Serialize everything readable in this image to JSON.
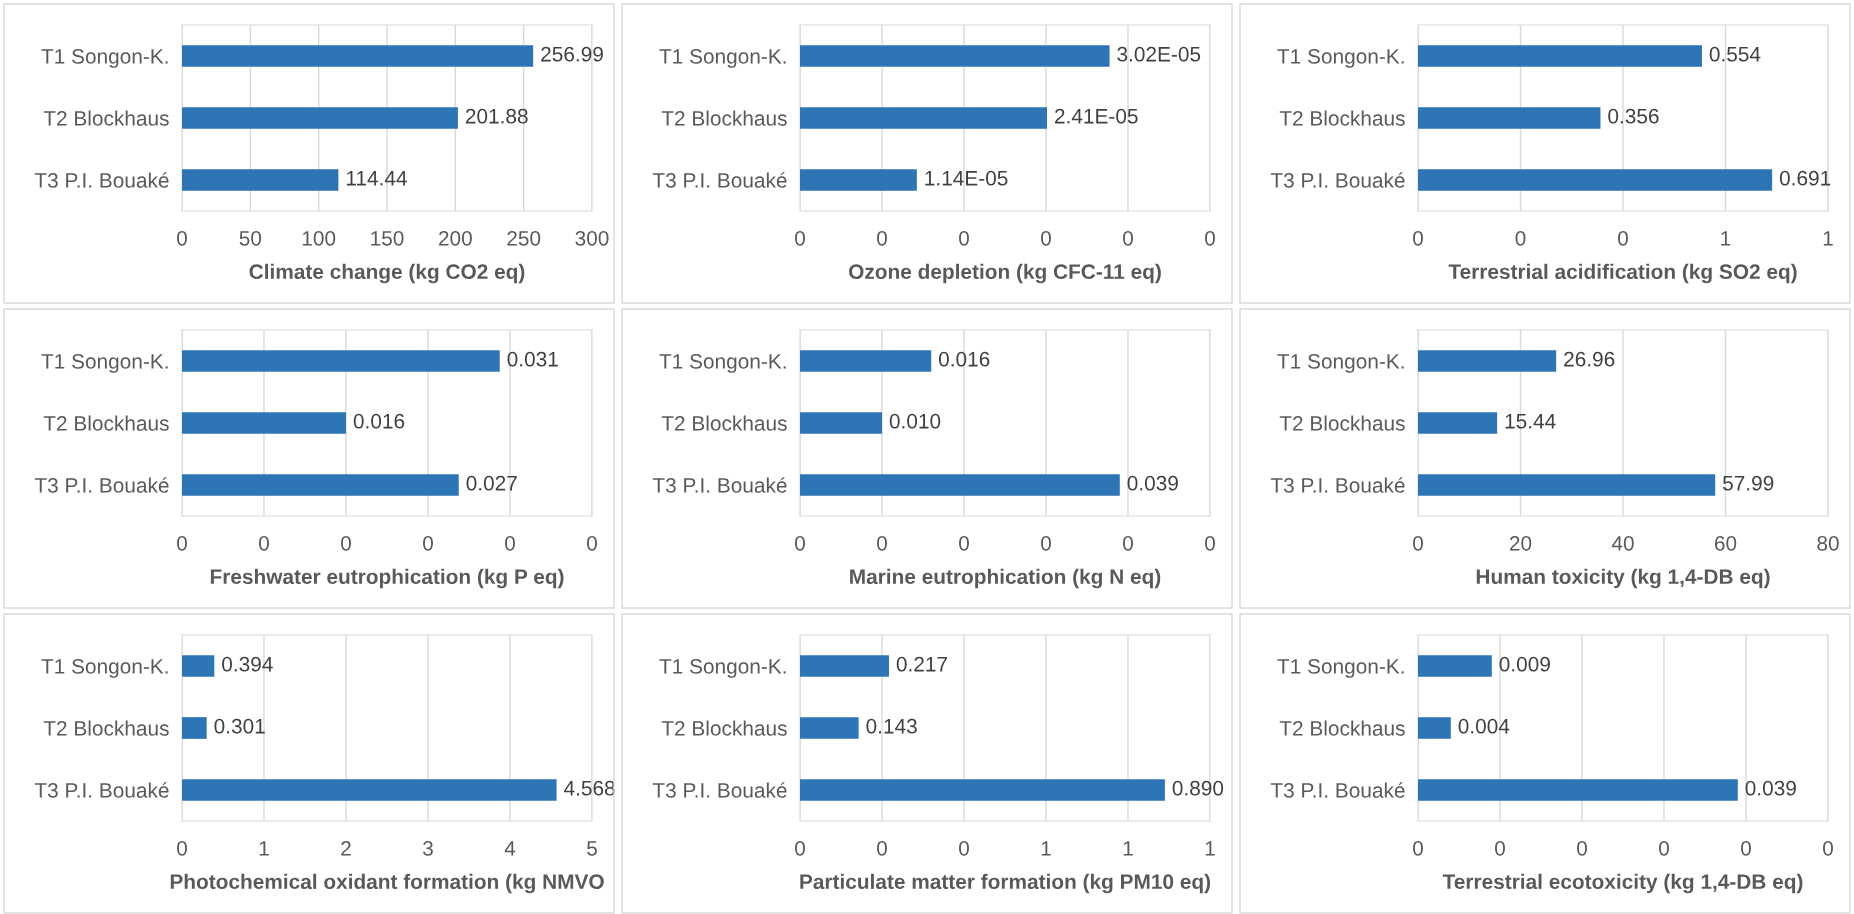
{
  "chart_data": [
    {
      "type": "bar",
      "orientation": "horizontal",
      "xlabel": "Climate change (kg CO2 eq)",
      "categories": [
        "T1 Songon-K.",
        "T2 Blockhaus",
        "T3 P.I. Bouaké"
      ],
      "values": [
        256.99,
        201.88,
        114.44
      ],
      "value_labels": [
        "256.99",
        "201.88",
        "114.44"
      ],
      "color": "#2e75b6",
      "xlim": [
        0,
        300
      ],
      "xticks": [
        0,
        50,
        100,
        150,
        200,
        250,
        300
      ],
      "grid": "x"
    },
    {
      "type": "bar",
      "orientation": "horizontal",
      "xlabel": "Ozone depletion (kg CFC-11 eq)",
      "categories": [
        "T1 Songon-K.",
        "T2 Blockhaus",
        "T3 P.I. Bouaké"
      ],
      "values": [
        3.02e-05,
        2.41e-05,
        1.14e-05
      ],
      "value_labels": [
        "3.02E-05",
        "2.41E-05",
        "1.14E-05"
      ],
      "color": "#2e75b6",
      "xlim": [
        0,
        4e-05
      ],
      "xticks": [
        {
          "value": 0,
          "label": "0"
        },
        {
          "value": 8e-06,
          "label": "0"
        },
        {
          "value": 1.6e-05,
          "label": "0"
        },
        {
          "value": 2.4e-05,
          "label": "0"
        },
        {
          "value": 3.2e-05,
          "label": "0"
        },
        {
          "value": 4e-05,
          "label": "0"
        }
      ],
      "grid": "x"
    },
    {
      "type": "bar",
      "orientation": "horizontal",
      "xlabel": "Terrestrial acidification (kg SO2 eq)",
      "categories": [
        "T1 Songon-K.",
        "T2 Blockhaus",
        "T3 P.I. Bouaké"
      ],
      "values": [
        0.554,
        0.356,
        0.691
      ],
      "value_labels": [
        "0.554",
        "0.356",
        "0.691"
      ],
      "color": "#2e75b6",
      "xlim": [
        0,
        0.8
      ],
      "xticks": [
        {
          "value": 0,
          "label": "0"
        },
        {
          "value": 0.2,
          "label": "0"
        },
        {
          "value": 0.4,
          "label": "0"
        },
        {
          "value": 0.6,
          "label": "1"
        },
        {
          "value": 0.8,
          "label": "1"
        }
      ],
      "grid": "x"
    },
    {
      "type": "bar",
      "orientation": "horizontal",
      "xlabel": "Freshwater eutrophication (kg P eq)",
      "categories": [
        "T1 Songon-K.",
        "T2 Blockhaus",
        "T3 P.I. Bouaké"
      ],
      "values": [
        0.031,
        0.016,
        0.027
      ],
      "value_labels": [
        "0.031",
        "0.016",
        "0.027"
      ],
      "color": "#2e75b6",
      "xlim": [
        0,
        0.04
      ],
      "xticks": [
        {
          "value": 0,
          "label": "0"
        },
        {
          "value": 0.008,
          "label": "0"
        },
        {
          "value": 0.016,
          "label": "0"
        },
        {
          "value": 0.024,
          "label": "0"
        },
        {
          "value": 0.032,
          "label": "0"
        },
        {
          "value": 0.04,
          "label": "0"
        }
      ],
      "grid": "x"
    },
    {
      "type": "bar",
      "orientation": "horizontal",
      "xlabel": "Marine eutrophication (kg N eq)",
      "categories": [
        "T1 Songon-K.",
        "T2 Blockhaus",
        "T3 P.I. Bouaké"
      ],
      "values": [
        0.016,
        0.01,
        0.039
      ],
      "value_labels": [
        "0.016",
        "0.010",
        "0.039"
      ],
      "color": "#2e75b6",
      "xlim": [
        0,
        0.05
      ],
      "xticks": [
        {
          "value": 0,
          "label": "0"
        },
        {
          "value": 0.01,
          "label": "0"
        },
        {
          "value": 0.02,
          "label": "0"
        },
        {
          "value": 0.03,
          "label": "0"
        },
        {
          "value": 0.04,
          "label": "0"
        },
        {
          "value": 0.05,
          "label": "0"
        }
      ],
      "grid": "x"
    },
    {
      "type": "bar",
      "orientation": "horizontal",
      "xlabel": "Human toxicity (kg 1,4-DB eq)",
      "categories": [
        "T1 Songon-K.",
        "T2 Blockhaus",
        "T3 P.I. Bouaké"
      ],
      "values": [
        26.96,
        15.44,
        57.99
      ],
      "value_labels": [
        "26.96",
        "15.44",
        "57.99"
      ],
      "color": "#2e75b6",
      "xlim": [
        0,
        80
      ],
      "xticks": [
        0,
        20,
        40,
        60,
        80
      ],
      "grid": "x"
    },
    {
      "type": "bar",
      "orientation": "horizontal",
      "xlabel": "Photochemical oxidant formation (kg NMVO",
      "categories": [
        "T1 Songon-K.",
        "T2 Blockhaus",
        "T3 P.I. Bouaké"
      ],
      "values": [
        0.394,
        0.301,
        4.568
      ],
      "value_labels": [
        "0.394",
        "0.301",
        "4.568"
      ],
      "color": "#2e75b6",
      "xlim": [
        0,
        5
      ],
      "xticks": [
        0,
        1,
        2,
        3,
        4,
        5
      ],
      "grid": "x"
    },
    {
      "type": "bar",
      "orientation": "horizontal",
      "xlabel": "Particulate matter formation (kg PM10 eq)",
      "categories": [
        "T1 Songon-K.",
        "T2 Blockhaus",
        "T3 P.I. Bouaké"
      ],
      "values": [
        0.217,
        0.143,
        0.89
      ],
      "value_labels": [
        "0.217",
        "0.143",
        "0.890"
      ],
      "color": "#2e75b6",
      "xlim": [
        0,
        1
      ],
      "xticks": [
        {
          "value": 0,
          "label": "0"
        },
        {
          "value": 0.2,
          "label": "0"
        },
        {
          "value": 0.4,
          "label": "0"
        },
        {
          "value": 0.6,
          "label": "1"
        },
        {
          "value": 0.8,
          "label": "1"
        },
        {
          "value": 1,
          "label": "1"
        }
      ],
      "grid": "x"
    },
    {
      "type": "bar",
      "orientation": "horizontal",
      "xlabel": "Terrestrial ecotoxicity (kg 1,4-DB eq)",
      "categories": [
        "T1 Songon-K.",
        "T2 Blockhaus",
        "T3 P.I. Bouaké"
      ],
      "values": [
        0.009,
        0.004,
        0.039
      ],
      "value_labels": [
        "0.009",
        "0.004",
        "0.039"
      ],
      "color": "#2e75b6",
      "xlim": [
        0,
        0.05
      ],
      "xticks": [
        {
          "value": 0,
          "label": "0"
        },
        {
          "value": 0.01,
          "label": "0"
        },
        {
          "value": 0.02,
          "label": "0"
        },
        {
          "value": 0.03,
          "label": "0"
        },
        {
          "value": 0.04,
          "label": "0"
        },
        {
          "value": 0.05,
          "label": "0"
        }
      ],
      "grid": "x"
    }
  ]
}
